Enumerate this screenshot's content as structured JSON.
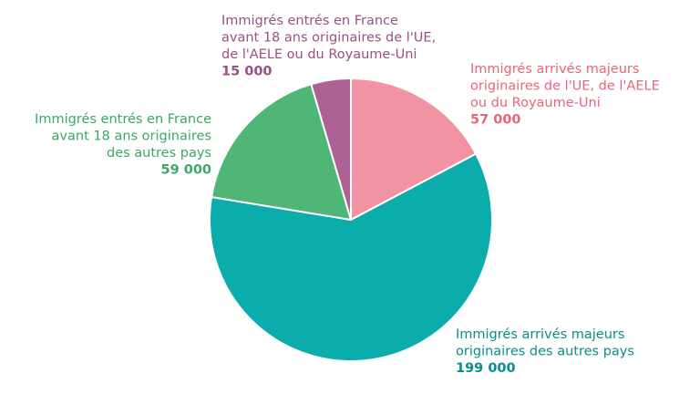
{
  "chart_data": {
    "type": "pie",
    "categories": [
      "Immigrés arrivés majeurs originaires de l'UE, de l'AELE ou du Royaume-Uni",
      "Immigrés arrivés majeurs originaires des autres pays",
      "Immigrés entrés en France avant 18 ans originaires des autres pays",
      "Immigrés entrés en France avant 18 ans originaires de l'UE, de l'AELE ou du Royaume-Uni"
    ],
    "values": [
      57000,
      199000,
      59000,
      15000
    ],
    "value_labels": [
      "57 000",
      "199 000",
      "59 000",
      "15 000"
    ],
    "colors": [
      "#f193a3",
      "#0aacac",
      "#4fb676",
      "#ad6295"
    ],
    "label_colors": [
      "#e8657c",
      "#078e8e",
      "#3aa866",
      "#9b4f86"
    ],
    "label_lines": [
      [
        "Immigrés arrivés majeurs",
        "originaires de l'UE, de l'AELE",
        "ou du Royaume-Uni"
      ],
      [
        "Immigrés arrivés majeurs",
        "originaires des autres pays"
      ],
      [
        "Immigrés entrés en France",
        "avant 18 ans originaires",
        "des autres pays"
      ],
      [
        "Immigrés entrés en France",
        "avant 18 ans originaires de l'UE,",
        "de l'AELE ou du Royaume-Uni"
      ]
    ],
    "start": "12 o'clock",
    "direction": "clockwise",
    "title": "",
    "legend": "none"
  }
}
